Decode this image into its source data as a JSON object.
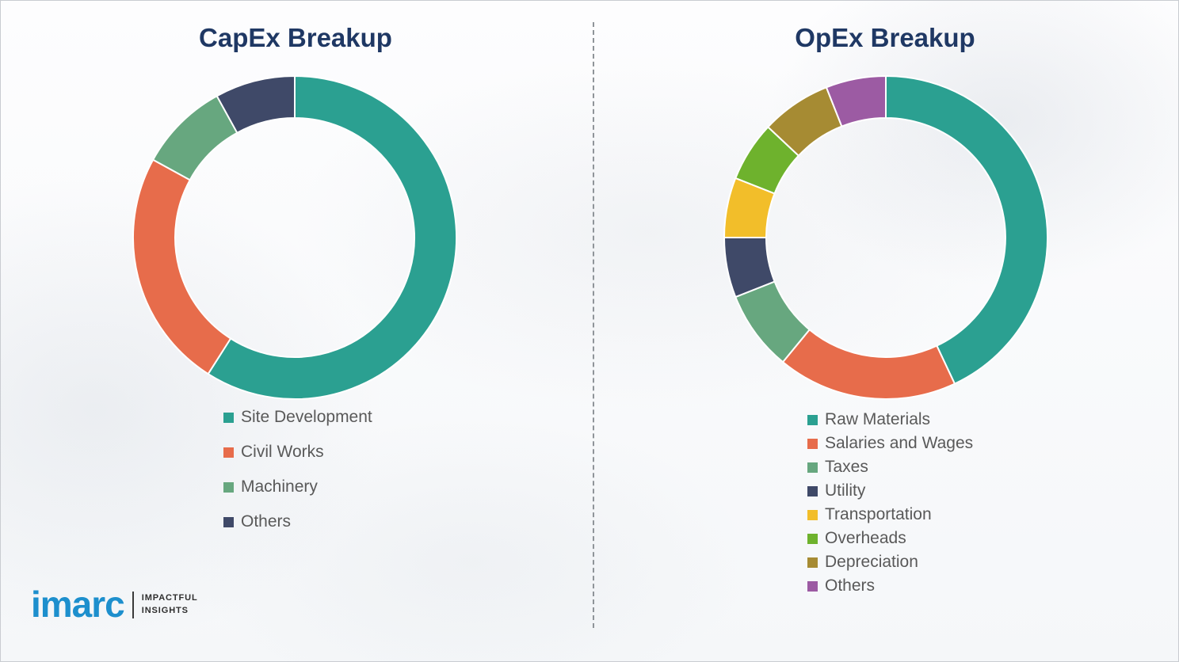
{
  "palette": {
    "title_color": "#1f3864",
    "legend_text_color": "#595959",
    "divider_color": "#8f9499",
    "brand_blue": "#1d8fcd",
    "tagline_color": "#2e2e2e"
  },
  "titles": {
    "left": "CapEx Breakup",
    "right": "OpEx Breakup"
  },
  "chart_data": [
    {
      "type": "pie",
      "variant": "donut",
      "title": "CapEx Breakup",
      "legend_position": "bottom-left",
      "labels_shown": false,
      "segments": [
        {
          "label": "Site Development",
          "value": 59,
          "color": "#2BA091"
        },
        {
          "label": "Civil Works",
          "value": 24,
          "color": "#E76C4B"
        },
        {
          "label": "Machinery",
          "value": 9,
          "color": "#67A77F"
        },
        {
          "label": "Others",
          "value": 8,
          "color": "#3F4968"
        }
      ]
    },
    {
      "type": "pie",
      "variant": "donut",
      "title": "OpEx Breakup",
      "legend_position": "bottom-left",
      "labels_shown": false,
      "segments": [
        {
          "label": "Raw Materials",
          "value": 43,
          "color": "#2BA091"
        },
        {
          "label": "Salaries and Wages",
          "value": 18,
          "color": "#E76C4B"
        },
        {
          "label": "Taxes",
          "value": 8,
          "color": "#67A77F"
        },
        {
          "label": "Utility",
          "value": 6,
          "color": "#3F4968"
        },
        {
          "label": "Transportation",
          "value": 6,
          "color": "#F2BE2A"
        },
        {
          "label": "Overheads",
          "value": 6,
          "color": "#6EB22D"
        },
        {
          "label": "Depreciation",
          "value": 7,
          "color": "#A68B33"
        },
        {
          "label": "Others",
          "value": 6,
          "color": "#9C5BA3"
        }
      ]
    }
  ],
  "logo": {
    "brand": "imarc",
    "tagline_line1": "IMPACTFUL",
    "tagline_line2": "INSIGHTS"
  }
}
